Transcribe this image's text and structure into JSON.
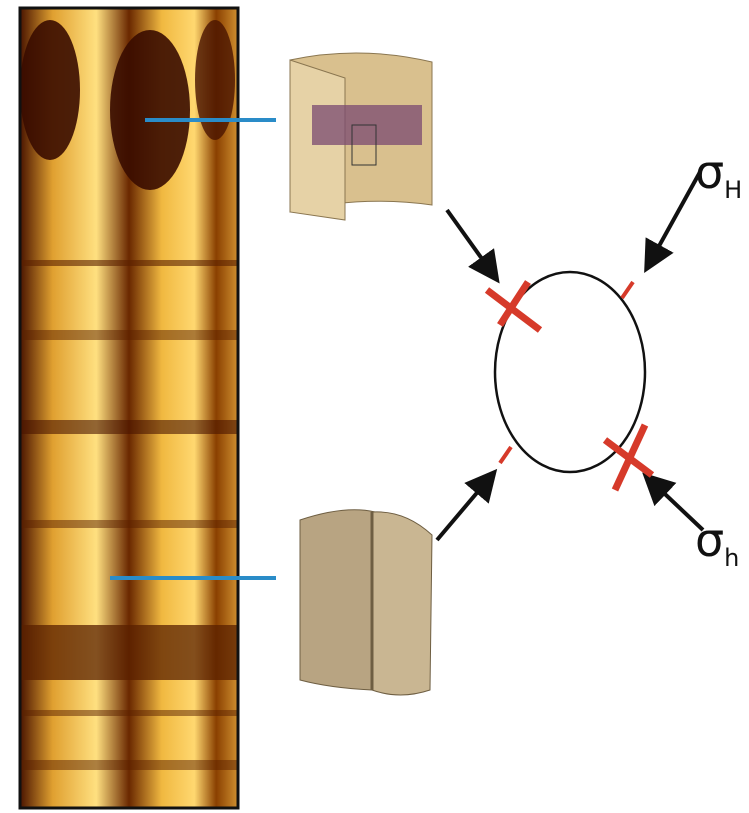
{
  "labels": {
    "sigma_H": {
      "symbol": "σ",
      "subscript": "H"
    },
    "sigma_h": {
      "symbol": "σ",
      "subscript": "h"
    }
  }
}
